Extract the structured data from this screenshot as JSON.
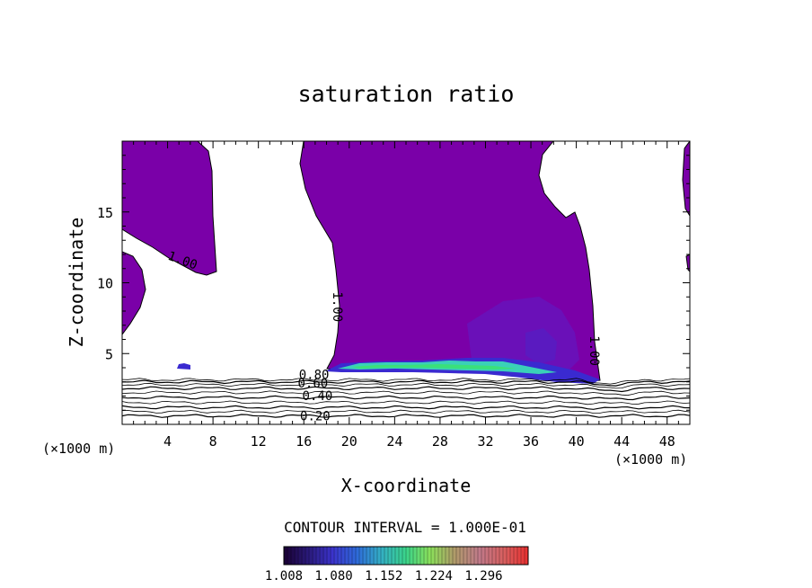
{
  "chart_data": {
    "type": "contour",
    "title": "saturation ratio",
    "xlabel": "X-coordinate",
    "ylabel": "Z-coordinate",
    "x_unit_left": "(×1000 m)",
    "x_unit_right": "(×1000 m)",
    "xlim": [
      0,
      50
    ],
    "ylim": [
      0,
      20
    ],
    "xticks": [
      "4",
      "8",
      "12",
      "16",
      "20",
      "24",
      "28",
      "32",
      "36",
      "40",
      "44",
      "48"
    ],
    "xtick_values": [
      4,
      8,
      12,
      16,
      20,
      24,
      28,
      32,
      36,
      40,
      44,
      48
    ],
    "yticks": [
      "5",
      "10",
      "15"
    ],
    "ytick_values": [
      5,
      10,
      15
    ],
    "contour_interval_text": "CONTOUR INTERVAL = 1.000E-01",
    "contour_labels": [
      {
        "text": "1.00",
        "x": 5.2,
        "y": 11.3,
        "rotate": 20
      },
      {
        "text": "1.00",
        "x": 18.6,
        "y": 8.3,
        "rotate": 90
      },
      {
        "text": "1.00",
        "x": 41.2,
        "y": 5.2,
        "rotate": 90
      },
      {
        "text": "0.80",
        "x": 16.9,
        "y": 3.2,
        "rotate": 0
      },
      {
        "text": "0.60",
        "x": 16.8,
        "y": 2.6,
        "rotate": 0
      },
      {
        "text": "0.40",
        "x": 17.2,
        "y": 1.7,
        "rotate": 0
      },
      {
        "text": "0.20",
        "x": 17.0,
        "y": 0.3,
        "rotate": 0
      }
    ],
    "colorbar": {
      "min": 1.008,
      "max": 1.36,
      "tick_labels": [
        "1.008",
        "1.080",
        "1.152",
        "1.224",
        "1.296"
      ],
      "colors": [
        "#1a0033",
        "#2a1a7a",
        "#3b33cc",
        "#2e6bd9",
        "#34b0c4",
        "#3ad48a",
        "#8ce05a",
        "#b09a6a",
        "#c07a8a",
        "#d86060",
        "#e83030"
      ]
    },
    "fill_color": "#7a00a8"
  }
}
